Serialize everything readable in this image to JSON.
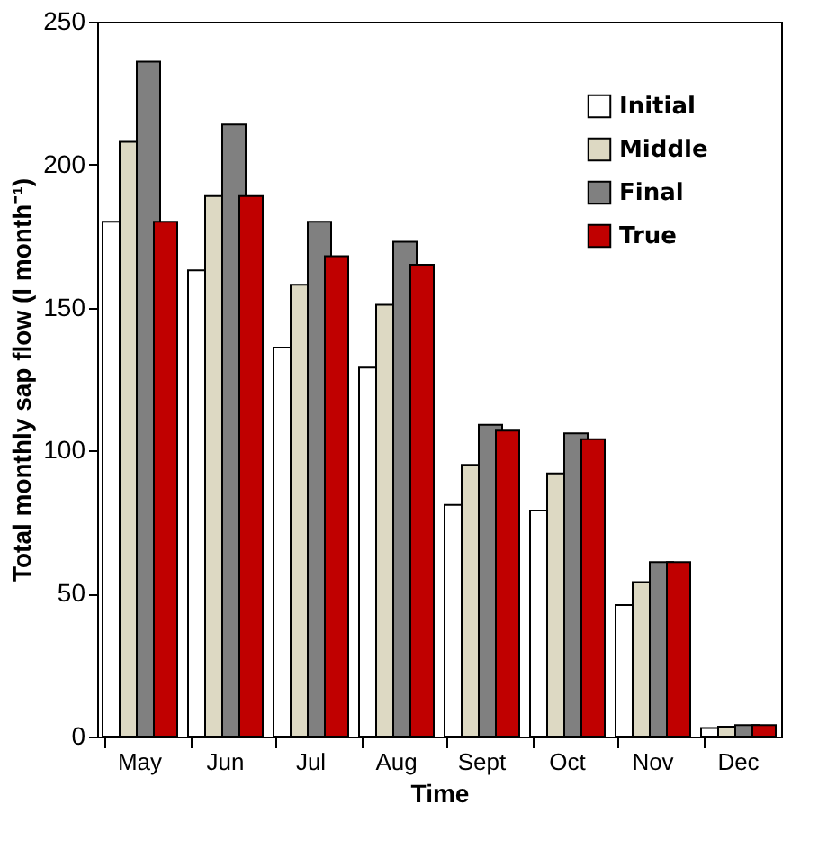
{
  "chart_data": {
    "type": "bar",
    "xlabel": "Time",
    "ylabel": "Total monthly sap flow (l month⁻¹)",
    "categories": [
      "May",
      "Jun",
      "Jul",
      "Aug",
      "Sept",
      "Oct",
      "Nov",
      "Dec"
    ],
    "series": [
      {
        "name": "Initial",
        "color": "#ffffff",
        "values": [
          180,
          163,
          136,
          129,
          81,
          79,
          46,
          3
        ]
      },
      {
        "name": "Middle",
        "color": "#ddd9c3",
        "values": [
          208,
          189,
          158,
          151,
          95,
          92,
          54,
          3.5
        ]
      },
      {
        "name": "Final",
        "color": "#808080",
        "values": [
          236,
          214,
          180,
          173,
          109,
          106,
          61,
          4
        ]
      },
      {
        "name": "True",
        "color": "#c00000",
        "values": [
          180,
          189,
          168,
          165,
          107,
          104,
          61,
          4
        ]
      }
    ],
    "ylim": [
      0,
      250
    ],
    "yticks": [
      0,
      50,
      100,
      150,
      200,
      250
    ],
    "grid": false,
    "legend": "top right"
  }
}
